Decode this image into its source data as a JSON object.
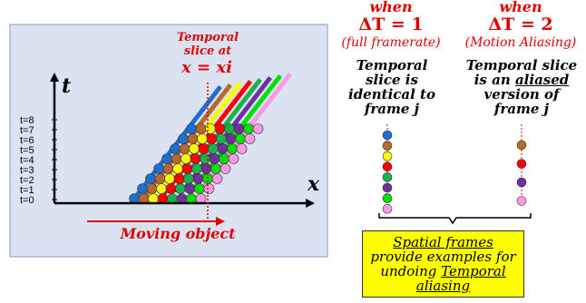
{
  "diagram": {
    "slice_label_line1": "Temporal",
    "slice_label_line2": "slice at",
    "slice_label_eq": "x = xi",
    "t_axis_label": "t",
    "x_axis_label": "x",
    "moving_object_label": "Moving object",
    "time_ticks": [
      "t=8",
      "t=7",
      "t=6",
      "t=5",
      "t=4",
      "t=3",
      "t=2",
      "t=1",
      "t=0"
    ],
    "colors": [
      "#1f6fd1",
      "#b8682a",
      "#ffff00",
      "#ff0000",
      "#18b34a",
      "#7030a0",
      "#00e000",
      "#ff99e6"
    ],
    "colors_aliased": [
      "#b8682a",
      "#ff0000",
      "#7030a0",
      "#ff99e6"
    ]
  },
  "col1": {
    "when": "when",
    "delta": "ΔT = 1",
    "paren": "(full framerate)",
    "desc1": "Temporal",
    "desc2": "slice is",
    "desc3": "identical to",
    "desc4": "frame j"
  },
  "col2": {
    "when": "when",
    "delta": "ΔT = 2",
    "paren": "(Motion Aliasing)",
    "desc1": "Temporal slice",
    "desc2_a": "is an ",
    "desc2_b": "aliased",
    "desc3": "version of",
    "desc4": "frame j"
  },
  "note": {
    "line1": "Spatial frames",
    "line2": "provide examples for",
    "line3a": "undoing ",
    "line3b": "Temporal",
    "line4": "aliasing"
  }
}
